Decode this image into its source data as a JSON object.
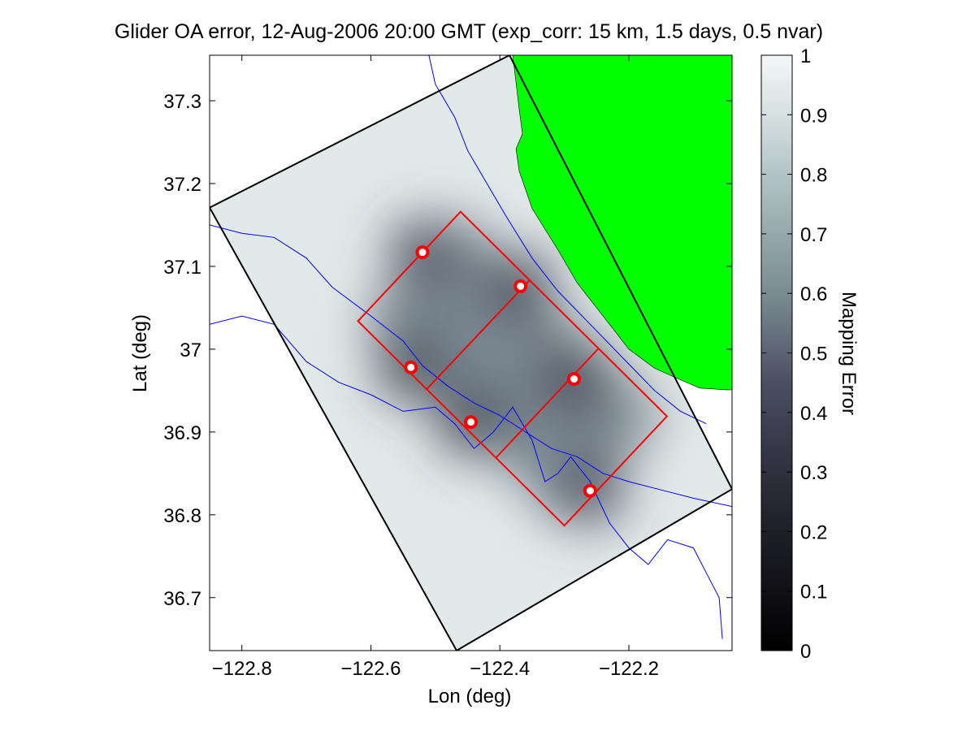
{
  "chart_data": {
    "type": "heatmap",
    "title": "Glider OA error, 12-Aug-2006 20:00 GMT (exp_corr: 15 km, 1.5 days, 0.5 nvar)",
    "xlabel": "Lon (deg)",
    "ylabel": "Lat (deg)",
    "xlim": [
      -122.85,
      -122.04
    ],
    "ylim": [
      36.636,
      37.355
    ],
    "xticks": [
      -122.8,
      -122.6,
      -122.4,
      -122.2
    ],
    "xtick_labels": [
      "−122.8",
      "−122.6",
      "−122.4",
      "−122.2"
    ],
    "yticks": [
      36.7,
      36.8,
      36.9,
      37.0,
      37.1,
      37.2,
      37.3
    ],
    "ytick_labels": [
      "36.7",
      "36.8",
      "36.9",
      "37",
      "37.1",
      "37.2",
      "37.3"
    ],
    "colorbar": {
      "label": "Mapping Error",
      "range": [
        0,
        1
      ],
      "ticks": [
        0,
        0.1,
        0.2,
        0.3,
        0.4,
        0.5,
        0.6,
        0.7,
        0.8,
        0.9,
        1
      ],
      "tick_labels": [
        "0",
        "0.1",
        "0.2",
        "0.3",
        "0.4",
        "0.5",
        "0.6",
        "0.7",
        "0.8",
        "0.9",
        "1"
      ],
      "low_color": "#000000",
      "high_color": "#f4f7f7"
    },
    "grid": false,
    "colors": {
      "land": "#00ff00",
      "domain_outline": "#000000",
      "glider_track": "#ff0000",
      "bathymetry": "#0000ff"
    },
    "domain_outline": [
      {
        "lon": -122.85,
        "lat": 37.171
      },
      {
        "lon": -122.385,
        "lat": 37.355
      },
      {
        "lon": -122.04,
        "lat": 36.831
      },
      {
        "lon": -122.467,
        "lat": 36.636
      }
    ],
    "glider_track_outer": [
      {
        "lon": -122.62,
        "lat": 37.034
      },
      {
        "lon": -122.461,
        "lat": 37.166
      },
      {
        "lon": -122.141,
        "lat": 36.919
      },
      {
        "lon": -122.3,
        "lat": 36.787
      }
    ],
    "glider_track_cross": [
      [
        {
          "lon": -122.513,
          "lat": 36.952
        },
        {
          "lon": -122.353,
          "lat": 37.084
        }
      ],
      [
        {
          "lon": -122.406,
          "lat": 36.869
        },
        {
          "lon": -122.247,
          "lat": 37.001
        }
      ]
    ],
    "glider_positions": [
      {
        "lon": -122.52,
        "lat": 37.117,
        "error": 0.45
      },
      {
        "lon": -122.368,
        "lat": 37.076,
        "error": 0.5
      },
      {
        "lon": -122.538,
        "lat": 36.978,
        "error": 0.55
      },
      {
        "lon": -122.285,
        "lat": 36.964,
        "error": 0.5
      },
      {
        "lon": -122.445,
        "lat": 36.912,
        "error": 0.55
      },
      {
        "lon": -122.26,
        "lat": 36.829,
        "error": 0.5
      }
    ],
    "land_boundary": [
      {
        "lon": -122.38,
        "lat": 37.355
      },
      {
        "lon": -122.04,
        "lat": 37.355
      },
      {
        "lon": -122.04,
        "lat": 36.951
      },
      {
        "lon": -122.05,
        "lat": 36.951
      },
      {
        "lon": -122.09,
        "lat": 36.953
      },
      {
        "lon": -122.12,
        "lat": 36.963
      },
      {
        "lon": -122.16,
        "lat": 36.977
      },
      {
        "lon": -122.2,
        "lat": 37.0
      },
      {
        "lon": -122.24,
        "lat": 37.04
      },
      {
        "lon": -122.28,
        "lat": 37.08
      },
      {
        "lon": -122.31,
        "lat": 37.12
      },
      {
        "lon": -122.35,
        "lat": 37.17
      },
      {
        "lon": -122.37,
        "lat": 37.215
      },
      {
        "lon": -122.375,
        "lat": 37.242
      },
      {
        "lon": -122.365,
        "lat": 37.26
      },
      {
        "lon": -122.37,
        "lat": 37.29
      },
      {
        "lon": -122.38,
        "lat": 37.355
      }
    ],
    "bathymetry_contours": [
      [
        {
          "lon": -122.51,
          "lat": 37.355
        },
        {
          "lon": -122.5,
          "lat": 37.32
        },
        {
          "lon": -122.47,
          "lat": 37.28
        },
        {
          "lon": -122.45,
          "lat": 37.24
        },
        {
          "lon": -122.42,
          "lat": 37.2
        },
        {
          "lon": -122.39,
          "lat": 37.16
        },
        {
          "lon": -122.35,
          "lat": 37.11
        },
        {
          "lon": -122.31,
          "lat": 37.07
        },
        {
          "lon": -122.26,
          "lat": 37.03
        },
        {
          "lon": -122.21,
          "lat": 36.99
        },
        {
          "lon": -122.16,
          "lat": 36.95
        },
        {
          "lon": -122.12,
          "lat": 36.925
        },
        {
          "lon": -122.08,
          "lat": 36.91
        }
      ],
      [
        {
          "lon": -122.85,
          "lat": 37.15
        },
        {
          "lon": -122.8,
          "lat": 37.14
        },
        {
          "lon": -122.75,
          "lat": 37.135
        },
        {
          "lon": -122.7,
          "lat": 37.11
        },
        {
          "lon": -122.66,
          "lat": 37.075
        },
        {
          "lon": -122.6,
          "lat": 37.04
        },
        {
          "lon": -122.55,
          "lat": 37.01
        },
        {
          "lon": -122.52,
          "lat": 36.98
        },
        {
          "lon": -122.48,
          "lat": 36.955
        },
        {
          "lon": -122.44,
          "lat": 36.935
        },
        {
          "lon": -122.4,
          "lat": 36.92
        },
        {
          "lon": -122.36,
          "lat": 36.9
        },
        {
          "lon": -122.32,
          "lat": 36.88
        },
        {
          "lon": -122.28,
          "lat": 36.87
        },
        {
          "lon": -122.24,
          "lat": 36.85
        },
        {
          "lon": -122.2,
          "lat": 36.84
        },
        {
          "lon": -122.15,
          "lat": 36.83
        },
        {
          "lon": -122.1,
          "lat": 36.82
        },
        {
          "lon": -122.04,
          "lat": 36.81
        }
      ],
      [
        {
          "lon": -122.85,
          "lat": 37.03
        },
        {
          "lon": -122.8,
          "lat": 37.04
        },
        {
          "lon": -122.75,
          "lat": 37.03
        },
        {
          "lon": -122.7,
          "lat": 36.985
        },
        {
          "lon": -122.65,
          "lat": 36.96
        },
        {
          "lon": -122.6,
          "lat": 36.945
        },
        {
          "lon": -122.55,
          "lat": 36.925
        },
        {
          "lon": -122.5,
          "lat": 36.93
        },
        {
          "lon": -122.47,
          "lat": 36.91
        },
        {
          "lon": -122.44,
          "lat": 36.88
        },
        {
          "lon": -122.41,
          "lat": 36.9
        },
        {
          "lon": -122.38,
          "lat": 36.93
        },
        {
          "lon": -122.35,
          "lat": 36.89
        },
        {
          "lon": -122.33,
          "lat": 36.84
        },
        {
          "lon": -122.31,
          "lat": 36.85
        },
        {
          "lon": -122.29,
          "lat": 36.87
        },
        {
          "lon": -122.26,
          "lat": 36.84
        },
        {
          "lon": -122.23,
          "lat": 36.79
        },
        {
          "lon": -122.2,
          "lat": 36.76
        },
        {
          "lon": -122.17,
          "lat": 36.74
        },
        {
          "lon": -122.14,
          "lat": 36.77
        },
        {
          "lon": -122.1,
          "lat": 36.76
        },
        {
          "lon": -122.08,
          "lat": 36.73
        },
        {
          "lon": -122.06,
          "lat": 36.7
        },
        {
          "lon": -122.055,
          "lat": 36.65
        }
      ]
    ],
    "error_field": {
      "background": 0.96,
      "offshore_gradient": 0.06,
      "min_inside": 0.52,
      "centers": [
        {
          "lon": -122.52,
          "lat": 37.117,
          "depth": 0.38
        },
        {
          "lon": -122.368,
          "lat": 37.076,
          "depth": 0.36
        },
        {
          "lon": -122.538,
          "lat": 36.978,
          "depth": 0.34
        },
        {
          "lon": -122.285,
          "lat": 36.964,
          "depth": 0.36
        },
        {
          "lon": -122.445,
          "lat": 36.912,
          "depth": 0.34
        },
        {
          "lon": -122.26,
          "lat": 36.829,
          "depth": 0.38
        }
      ]
    }
  }
}
